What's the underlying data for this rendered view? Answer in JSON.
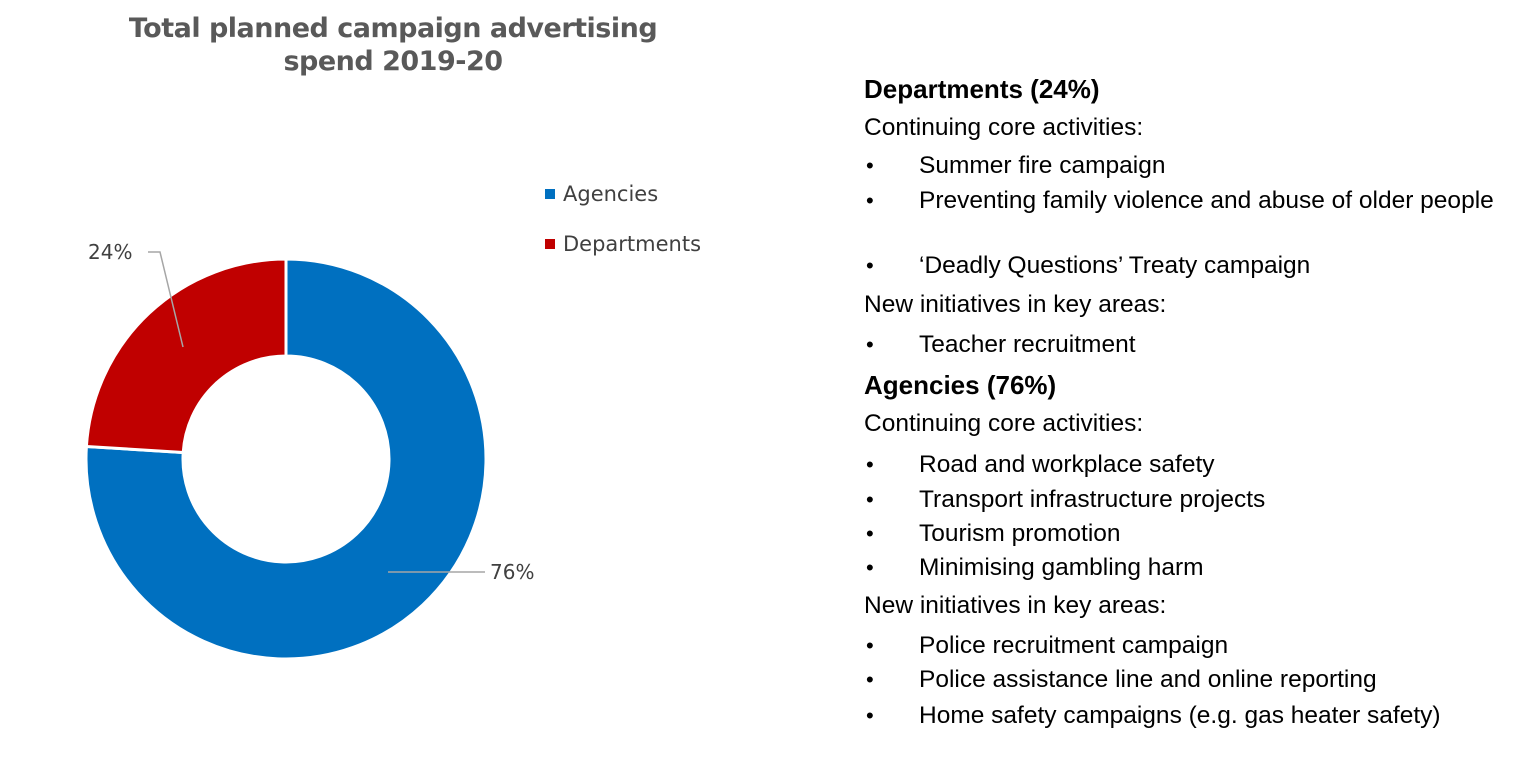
{
  "chart_data": {
    "type": "pie",
    "variant": "donut",
    "title_lines": [
      "Total planned campaign advertising",
      "spend 2019-20"
    ],
    "categories": [
      "Agencies",
      "Departments"
    ],
    "values": [
      76,
      24
    ],
    "data_labels": [
      "76%",
      "24%"
    ],
    "colors": [
      "#0070C0",
      "#C00000"
    ],
    "legend": {
      "position": "right",
      "entries": [
        "Agencies",
        "Departments"
      ]
    }
  },
  "notes": {
    "sections": [
      {
        "heading": "Departments (24%)",
        "groups": [
          {
            "label": "Continuing core activities:",
            "items": [
              "Summer fire campaign",
              "Preventing family violence and abuse of older people",
              "‘Deadly Questions’ Treaty campaign"
            ]
          },
          {
            "label": "New initiatives in key areas:",
            "items": [
              "Teacher recruitment"
            ]
          }
        ]
      },
      {
        "heading": "Agencies (76%)",
        "groups": [
          {
            "label": "Continuing core activities:",
            "items": [
              "Road and workplace safety",
              "Transport infrastructure projects",
              "Tourism promotion",
              "Minimising gambling harm"
            ]
          },
          {
            "label": "New initiatives in key areas:",
            "items": [
              "Police recruitment campaign",
              "Police assistance line and online reporting",
              "Home safety campaigns (e.g. gas heater safety)"
            ]
          }
        ]
      }
    ]
  }
}
